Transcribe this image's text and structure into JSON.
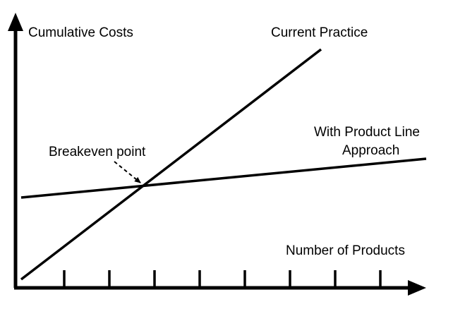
{
  "chart_data": {
    "type": "line",
    "title": "",
    "xlabel": "Number of Products",
    "ylabel": "Cumulative Costs",
    "x_tick_count": 8,
    "tick_labels_shown": false,
    "series": [
      {
        "name": "Current Practice"
      },
      {
        "name": "With Product Line Approach"
      }
    ],
    "annotations": [
      {
        "text": "Breakeven point",
        "points_to": "intersection of the two lines"
      }
    ]
  },
  "labels": {
    "y_axis": "Cumulative Costs",
    "x_axis": "Number of Products",
    "current_practice": "Current Practice",
    "product_line_1": "With Product Line",
    "product_line_2": "Approach",
    "breakeven": "Breakeven point"
  },
  "colors": {
    "ink": "#000000",
    "background": "#ffffff"
  }
}
